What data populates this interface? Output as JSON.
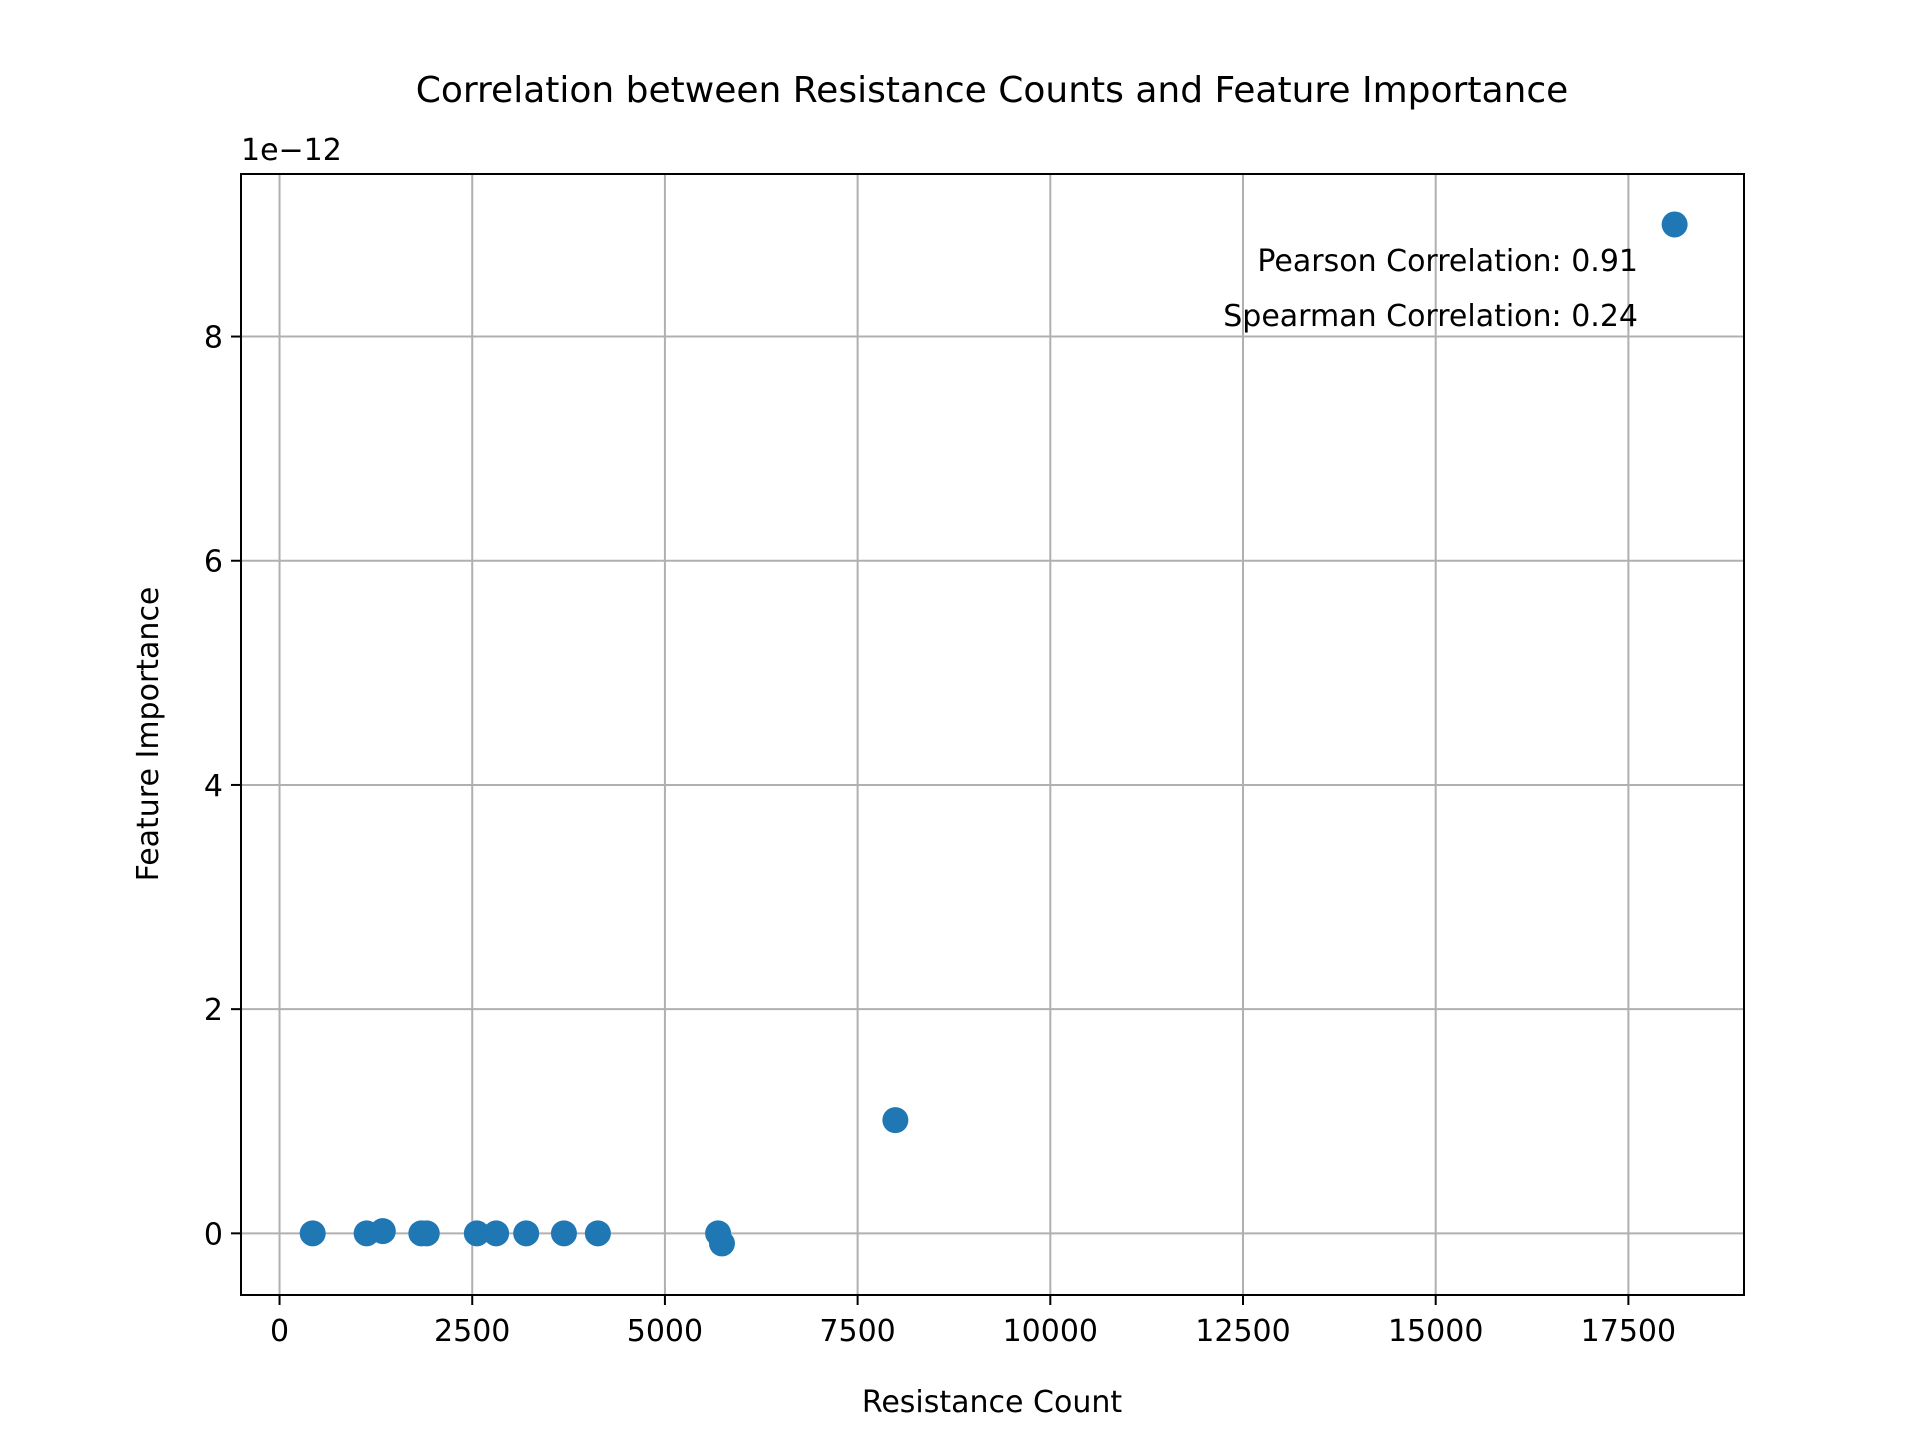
{
  "chart_data": {
    "type": "scatter",
    "title": "Correlation between Resistance Counts and Feature Importance",
    "xlabel": "Resistance Count",
    "ylabel": "Feature Importance",
    "y_offset_label": "1e−12",
    "xlim": [
      -500,
      19000
    ],
    "ylim": [
      -0.55,
      9.45
    ],
    "x_ticks": [
      0,
      2500,
      5000,
      7500,
      10000,
      12500,
      15000,
      17500
    ],
    "y_ticks": [
      0,
      2,
      4,
      6,
      8
    ],
    "grid": true,
    "marker_color": "#1f77b4",
    "annotations": [
      "Pearson Correlation: 0.91",
      "Spearman Correlation: 0.24"
    ],
    "points": [
      {
        "x": 430,
        "y": 0.0
      },
      {
        "x": 1130,
        "y": 0.0
      },
      {
        "x": 1340,
        "y": 0.02
      },
      {
        "x": 1840,
        "y": 0.0
      },
      {
        "x": 1910,
        "y": 0.0
      },
      {
        "x": 2560,
        "y": 0.0
      },
      {
        "x": 2810,
        "y": 0.0
      },
      {
        "x": 3200,
        "y": 0.0
      },
      {
        "x": 3690,
        "y": 0.0
      },
      {
        "x": 4130,
        "y": 0.0
      },
      {
        "x": 5690,
        "y": 0.0
      },
      {
        "x": 5740,
        "y": -0.09
      },
      {
        "x": 7990,
        "y": 1.01
      },
      {
        "x": 18100,
        "y": 9.0
      }
    ]
  }
}
